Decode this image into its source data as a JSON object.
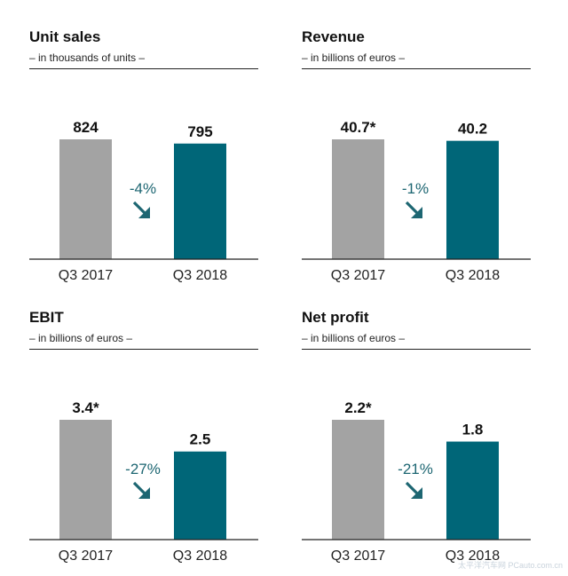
{
  "colors": {
    "q3_2017_bar": "#a3a3a3",
    "q3_2018_bar": "#006678",
    "change": "#1d6672",
    "axis": "#222222"
  },
  "chart_data": [
    {
      "type": "bar",
      "title": "Unit sales",
      "subtitle": "– in thousands of units –",
      "categories": [
        "Q3 2017",
        "Q3 2018"
      ],
      "values": [
        824,
        795
      ],
      "value_labels": [
        "824",
        "795"
      ],
      "change_label": "-4%",
      "change_icon": "arrow-down-right-icon"
    },
    {
      "type": "bar",
      "title": "Revenue",
      "subtitle": "– in billions of euros –",
      "categories": [
        "Q3 2017",
        "Q3 2018"
      ],
      "values": [
        40.7,
        40.2
      ],
      "value_labels": [
        "40.7*",
        "40.2"
      ],
      "change_label": "-1%",
      "change_icon": "arrow-down-right-icon"
    },
    {
      "type": "bar",
      "title": "EBIT",
      "subtitle": "– in billions of euros –",
      "categories": [
        "Q3 2017",
        "Q3 2018"
      ],
      "values": [
        3.4,
        2.5
      ],
      "value_labels": [
        "3.4*",
        "2.5"
      ],
      "change_label": "-27%",
      "change_icon": "arrow-down-right-icon"
    },
    {
      "type": "bar",
      "title": "Net profit",
      "subtitle": "– in billions of euros –",
      "categories": [
        "Q3 2017",
        "Q3 2018"
      ],
      "values": [
        2.2,
        1.8
      ],
      "value_labels": [
        "2.2*",
        "1.8"
      ],
      "change_label": "-21%",
      "change_icon": "arrow-down-right-icon"
    }
  ],
  "watermark": "太平洋汽车网 PCauto.com.cn"
}
